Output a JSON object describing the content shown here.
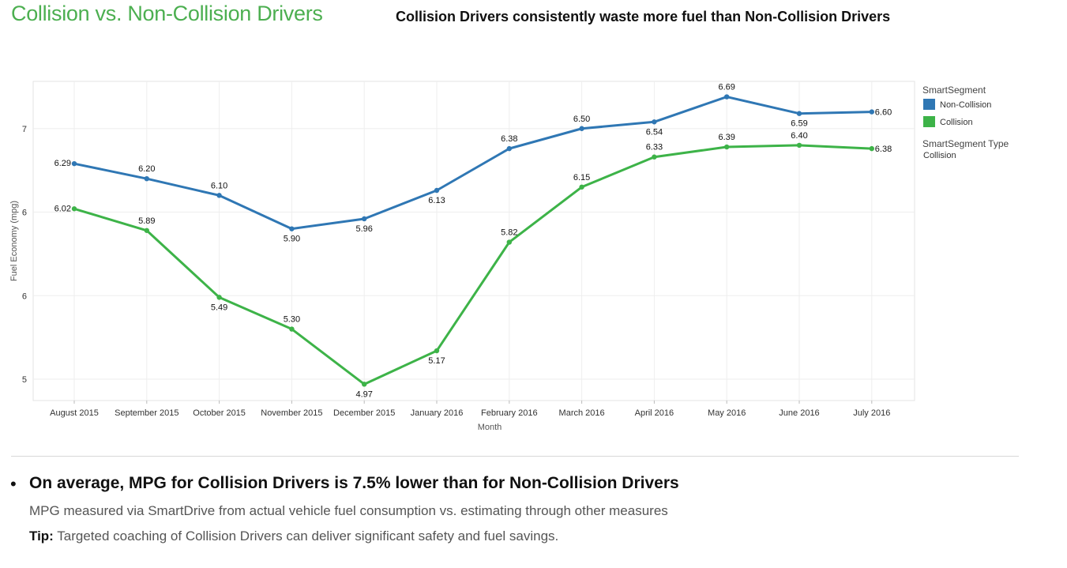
{
  "header": {
    "title": "Collision vs. Non-Collision Drivers",
    "subtitle": "Collision Drivers consistently waste more fuel than Non-Collision Drivers"
  },
  "chart_data": {
    "type": "line",
    "xlabel": "Month",
    "ylabel": "Fuel Economy (mpg)",
    "categories": [
      "August 2015",
      "September 2015",
      "October 2015",
      "November 2015",
      "December 2015",
      "January 2016",
      "February 2016",
      "March 2016",
      "April 2016",
      "May 2016",
      "June 2016",
      "July 2016"
    ],
    "y_ticks": [
      {
        "value": 5.0,
        "label": "5"
      },
      {
        "value": 5.5,
        "label": "6"
      },
      {
        "value": 6.0,
        "label": "6"
      },
      {
        "value": 6.5,
        "label": "7"
      }
    ],
    "ylim": [
      4.9,
      6.8
    ],
    "grid": true,
    "legend": {
      "title": "SmartSegment",
      "position": "right",
      "filter_title": "SmartSegment Type",
      "filter_value": "Collision"
    },
    "series": [
      {
        "name": "Non-Collision",
        "color": "#2f77b4",
        "values": [
          6.29,
          6.2,
          6.1,
          5.9,
          5.96,
          6.13,
          6.38,
          6.5,
          6.54,
          6.69,
          6.59,
          6.6
        ],
        "labels": [
          "6.29",
          "6.20",
          "6.10",
          "5.90",
          "5.96",
          "6.13",
          "6.38",
          "6.50",
          "6.54",
          "6.69",
          "6.59",
          "6.60"
        ],
        "label_pos": [
          "left",
          "above",
          "above",
          "below",
          "below",
          "below",
          "above",
          "above",
          "below",
          "above",
          "below",
          "right"
        ]
      },
      {
        "name": "Collision",
        "color": "#3db348",
        "values": [
          6.02,
          5.89,
          5.49,
          5.3,
          4.97,
          5.17,
          5.82,
          6.15,
          6.33,
          6.39,
          6.4,
          6.38
        ],
        "labels": [
          "6.02",
          "5.89",
          "5.49",
          "5.30",
          "4.97",
          "5.17",
          "5.82",
          "6.15",
          "6.33",
          "6.39",
          "6.40",
          "6.38"
        ],
        "label_pos": [
          "left",
          "above",
          "below",
          "above",
          "below",
          "below",
          "above",
          "above",
          "above",
          "above",
          "above",
          "right"
        ]
      }
    ]
  },
  "summary": {
    "bullet": "On average, MPG for Collision Drivers is 7.5% lower than for Non-Collision Drivers",
    "note": "MPG measured via SmartDrive from actual vehicle fuel consumption vs. estimating through other measures",
    "tip_label": "Tip:",
    "tip_text": " Targeted coaching of Collision Drivers can deliver significant safety and fuel savings."
  }
}
